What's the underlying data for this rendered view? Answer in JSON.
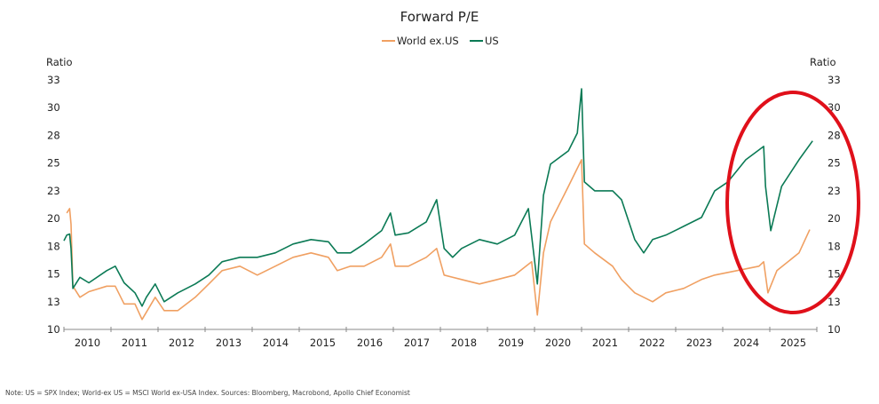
{
  "chart_data": {
    "type": "line",
    "title": "Forward P/E",
    "ylabel_left": "Ratio",
    "ylabel_right": "Ratio",
    "ylim": [
      10,
      32.5
    ],
    "y_ticks": [
      10,
      12.5,
      15,
      17.5,
      20,
      22.5,
      25,
      27.5,
      30,
      32.5
    ],
    "y_tick_labels": [
      "10",
      "13",
      "15",
      "18",
      "20",
      "23",
      "25",
      "28",
      "30",
      "33"
    ],
    "x_tick_labels": [
      "2010",
      "2011",
      "2012",
      "2013",
      "2014",
      "2015",
      "2016",
      "2017",
      "2018",
      "2019",
      "2020",
      "2021",
      "2022",
      "2023",
      "2024",
      "2025"
    ],
    "xlim": [
      2010,
      2026
    ],
    "grid": false,
    "legend_position": "top-center",
    "annotation": {
      "shape": "ellipse",
      "color": "#e0101a",
      "covers": "2024-2025"
    },
    "series": [
      {
        "name": "World ex.US",
        "color": "#f0a062",
        "x": [
          2010.06,
          2010.12,
          2010.15,
          2010.19,
          2010.34,
          2010.53,
          2010.91,
          2011.09,
          2011.28,
          2011.51,
          2011.66,
          2011.94,
          2012.13,
          2012.42,
          2012.79,
          2013.08,
          2013.36,
          2013.74,
          2014.11,
          2014.49,
          2014.87,
          2015.25,
          2015.62,
          2015.81,
          2016.09,
          2016.38,
          2016.75,
          2016.94,
          2017.04,
          2017.32,
          2017.7,
          2017.92,
          2018.08,
          2018.45,
          2018.83,
          2019.21,
          2019.58,
          2019.94,
          2020.06,
          2020.19,
          2020.34,
          2020.72,
          2021.0,
          2021.06,
          2021.28,
          2021.66,
          2021.85,
          2022.13,
          2022.51,
          2022.79,
          2023.17,
          2023.55,
          2023.83,
          2024.3,
          2024.77,
          2024.87,
          2024.96,
          2025.15,
          2025.62,
          2025.85
        ],
        "y": [
          20.5,
          20.9,
          19.5,
          13.9,
          12.9,
          13.4,
          13.9,
          13.9,
          12.3,
          12.3,
          10.9,
          12.9,
          11.7,
          11.7,
          12.9,
          14.1,
          15.3,
          15.7,
          14.9,
          15.7,
          16.5,
          16.9,
          16.5,
          15.3,
          15.7,
          15.7,
          16.5,
          17.7,
          15.7,
          15.7,
          16.5,
          17.3,
          14.9,
          14.5,
          14.1,
          14.5,
          14.9,
          16.1,
          11.3,
          16.9,
          19.7,
          22.9,
          25.3,
          17.7,
          16.9,
          15.7,
          14.5,
          13.3,
          12.5,
          13.3,
          13.7,
          14.5,
          14.9,
          15.3,
          15.7,
          16.1,
          13.3,
          15.3,
          16.9,
          19.0
        ]
      },
      {
        "name": "US",
        "color": "#0b7a55",
        "x": [
          2010.0,
          2010.06,
          2010.12,
          2010.15,
          2010.19,
          2010.34,
          2010.53,
          2010.91,
          2011.09,
          2011.28,
          2011.51,
          2011.66,
          2011.75,
          2011.94,
          2012.13,
          2012.42,
          2012.79,
          2013.08,
          2013.36,
          2013.74,
          2014.11,
          2014.49,
          2014.87,
          2015.25,
          2015.62,
          2015.81,
          2016.09,
          2016.38,
          2016.75,
          2016.94,
          2017.04,
          2017.32,
          2017.7,
          2017.92,
          2018.08,
          2018.26,
          2018.45,
          2018.83,
          2019.21,
          2019.58,
          2019.87,
          2020.06,
          2020.19,
          2020.34,
          2020.72,
          2020.91,
          2021.0,
          2021.06,
          2021.28,
          2021.66,
          2021.85,
          2022.13,
          2022.32,
          2022.51,
          2022.79,
          2023.17,
          2023.55,
          2023.83,
          2024.11,
          2024.49,
          2024.87,
          2024.91,
          2025.02,
          2025.25,
          2025.62,
          2025.91
        ],
        "y": [
          18.0,
          18.5,
          18.6,
          17.3,
          13.7,
          14.7,
          14.2,
          15.3,
          15.7,
          14.2,
          13.3,
          12.1,
          12.9,
          14.1,
          12.5,
          13.3,
          14.1,
          14.9,
          16.1,
          16.5,
          16.5,
          16.9,
          17.7,
          18.1,
          17.9,
          16.9,
          16.9,
          17.7,
          18.9,
          20.5,
          18.5,
          18.7,
          19.7,
          21.7,
          17.3,
          16.5,
          17.3,
          18.1,
          17.7,
          18.5,
          20.9,
          14.1,
          22.1,
          24.9,
          26.1,
          27.7,
          31.7,
          23.3,
          22.5,
          22.5,
          21.7,
          18.1,
          16.9,
          18.1,
          18.5,
          19.3,
          20.1,
          22.5,
          23.3,
          25.3,
          26.5,
          22.9,
          18.9,
          22.9,
          25.3,
          27.0
        ]
      }
    ],
    "note": "Note: US = SPX Index; World-ex US = MSCI World ex-USA Index. Sources: Bloomberg, Macrobond, Apollo Chief Economist"
  }
}
